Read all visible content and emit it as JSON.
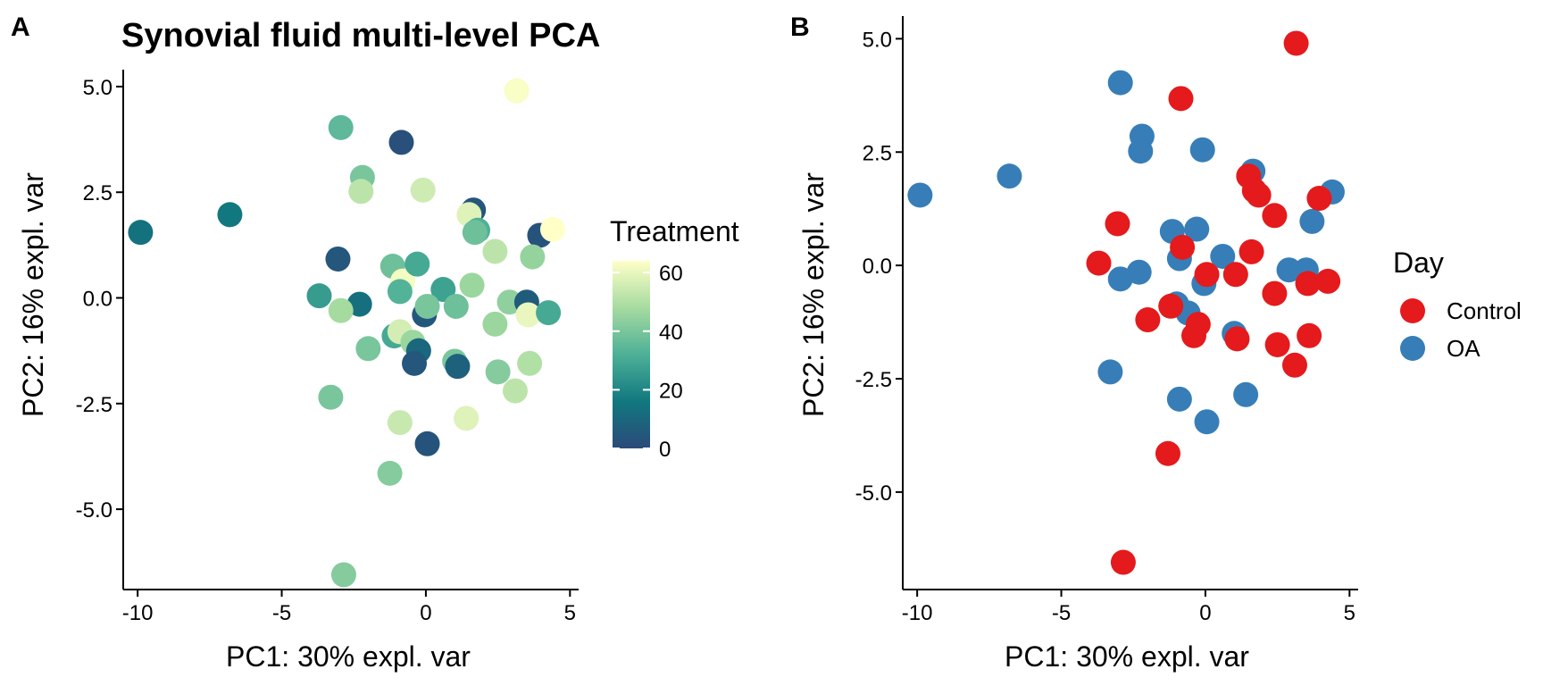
{
  "chart_data": [
    {
      "panel": "A",
      "type": "scatter",
      "title": "Synovial fluid multi-level PCA",
      "xlabel": "PC1: 30% expl. var",
      "ylabel": "PC2: 16% expl. var",
      "xlim": [
        -10.5,
        5.3
      ],
      "ylim": [
        -6.9,
        5.4
      ],
      "xticks": [
        -10,
        -5,
        0,
        5
      ],
      "xtick_labels": [
        "-10",
        "-5",
        "0",
        "5"
      ],
      "yticks": [
        -5,
        -2.5,
        0,
        2.5,
        5
      ],
      "ytick_labels": [
        "-5.0",
        "-2.5",
        "0.0",
        "2.5",
        "5.0"
      ],
      "grid": false,
      "legend": {
        "title": "Treatment",
        "type": "colorbar",
        "placement": "right",
        "min": 0,
        "max": 64,
        "ticks": [
          0,
          20,
          40,
          60
        ],
        "tick_labels": [
          "0",
          "20",
          "40",
          "60"
        ],
        "colors": [
          "#2b4a7a",
          "#11787f",
          "#4db097",
          "#a6dba0",
          "#ffffc8"
        ]
      },
      "color_key": "Treatment",
      "points": [
        {
          "x": -9.9,
          "y": 1.55,
          "Treatment": 14
        },
        {
          "x": -6.8,
          "y": 1.97,
          "Treatment": 16
        },
        {
          "x": -2.95,
          "y": 4.03,
          "Treatment": 35
        },
        {
          "x": -0.85,
          "y": 3.68,
          "Treatment": 2
        },
        {
          "x": 3.15,
          "y": 4.9,
          "Treatment": 63
        },
        {
          "x": -2.2,
          "y": 2.85,
          "Treatment": 40
        },
        {
          "x": -2.25,
          "y": 2.52,
          "Treatment": 52
        },
        {
          "x": -0.1,
          "y": 2.55,
          "Treatment": 55
        },
        {
          "x": 1.65,
          "y": 2.08,
          "Treatment": 4
        },
        {
          "x": 1.5,
          "y": 1.97,
          "Treatment": 58
        },
        {
          "x": 1.8,
          "y": 1.6,
          "Treatment": 32
        },
        {
          "x": 1.7,
          "y": 1.55,
          "Treatment": 38
        },
        {
          "x": 2.4,
          "y": 1.1,
          "Treatment": 52
        },
        {
          "x": 3.95,
          "y": 1.48,
          "Treatment": 3
        },
        {
          "x": 4.4,
          "y": 1.62,
          "Treatment": 64
        },
        {
          "x": -3.05,
          "y": 0.92,
          "Treatment": 4
        },
        {
          "x": -1.15,
          "y": 0.75,
          "Treatment": 38
        },
        {
          "x": -0.8,
          "y": 0.4,
          "Treatment": 62
        },
        {
          "x": -0.3,
          "y": 0.8,
          "Treatment": 30
        },
        {
          "x": -0.9,
          "y": 0.15,
          "Treatment": 33
        },
        {
          "x": 0.6,
          "y": 0.2,
          "Treatment": 28
        },
        {
          "x": 1.6,
          "y": 0.3,
          "Treatment": 46
        },
        {
          "x": 3.7,
          "y": 0.97,
          "Treatment": 45
        },
        {
          "x": -3.7,
          "y": 0.05,
          "Treatment": 26
        },
        {
          "x": -2.3,
          "y": -0.15,
          "Treatment": 13
        },
        {
          "x": -2.95,
          "y": -0.3,
          "Treatment": 48
        },
        {
          "x": -0.05,
          "y": -0.4,
          "Treatment": 5
        },
        {
          "x": 0.05,
          "y": -0.2,
          "Treatment": 40
        },
        {
          "x": 1.05,
          "y": -0.2,
          "Treatment": 38
        },
        {
          "x": 2.9,
          "y": -0.1,
          "Treatment": 44
        },
        {
          "x": 3.5,
          "y": -0.1,
          "Treatment": 6
        },
        {
          "x": 3.55,
          "y": -0.4,
          "Treatment": 60
        },
        {
          "x": 4.25,
          "y": -0.35,
          "Treatment": 30
        },
        {
          "x": 2.4,
          "y": -0.62,
          "Treatment": 46
        },
        {
          "x": -1.1,
          "y": -0.9,
          "Treatment": 30
        },
        {
          "x": -0.9,
          "y": -0.8,
          "Treatment": 56
        },
        {
          "x": -0.45,
          "y": -1.05,
          "Treatment": 46
        },
        {
          "x": -0.25,
          "y": -1.25,
          "Treatment": 10
        },
        {
          "x": -0.4,
          "y": -1.55,
          "Treatment": 4
        },
        {
          "x": -2.0,
          "y": -1.2,
          "Treatment": 40
        },
        {
          "x": 1.0,
          "y": -1.5,
          "Treatment": 40
        },
        {
          "x": 1.1,
          "y": -1.62,
          "Treatment": 8
        },
        {
          "x": 2.5,
          "y": -1.75,
          "Treatment": 42
        },
        {
          "x": 3.6,
          "y": -1.55,
          "Treatment": 50
        },
        {
          "x": 3.1,
          "y": -2.2,
          "Treatment": 52
        },
        {
          "x": -3.3,
          "y": -2.35,
          "Treatment": 40
        },
        {
          "x": -0.9,
          "y": -2.95,
          "Treatment": 54
        },
        {
          "x": 1.4,
          "y": -2.85,
          "Treatment": 58
        },
        {
          "x": 0.05,
          "y": -3.45,
          "Treatment": 3
        },
        {
          "x": -1.25,
          "y": -4.15,
          "Treatment": 42
        },
        {
          "x": -2.85,
          "y": -6.55,
          "Treatment": 42
        }
      ]
    },
    {
      "panel": "B",
      "type": "scatter",
      "title": "",
      "xlabel": "PC1: 30% expl. var",
      "ylabel": "PC2: 16% expl. var",
      "xlim": [
        -10.5,
        5.3
      ],
      "ylim": [
        -7.15,
        5.5
      ],
      "xticks": [
        -10,
        -5,
        0,
        5
      ],
      "xtick_labels": [
        "-10",
        "-5",
        "0",
        "5"
      ],
      "yticks": [
        -5,
        -2.5,
        0,
        2.5,
        5
      ],
      "ytick_labels": [
        "-5.0",
        "-2.5",
        "0.0",
        "2.5",
        "5.0"
      ],
      "grid": false,
      "legend": {
        "title": "Day",
        "placement": "right",
        "entries": [
          {
            "label": "Control",
            "color": "#e41a1c"
          },
          {
            "label": "OA",
            "color": "#377eb8"
          }
        ]
      },
      "color_key": "Day",
      "points": [
        {
          "x": -9.9,
          "y": 1.55,
          "Day": "OA"
        },
        {
          "x": -6.8,
          "y": 1.97,
          "Day": "OA"
        },
        {
          "x": -2.95,
          "y": 4.03,
          "Day": "OA"
        },
        {
          "x": -2.2,
          "y": 2.85,
          "Day": "OA"
        },
        {
          "x": -2.25,
          "y": 2.52,
          "Day": "OA"
        },
        {
          "x": -0.1,
          "y": 2.55,
          "Day": "OA"
        },
        {
          "x": 1.65,
          "y": 2.08,
          "Day": "OA"
        },
        {
          "x": 3.7,
          "y": 0.97,
          "Day": "OA"
        },
        {
          "x": 4.4,
          "y": 1.62,
          "Day": "OA"
        },
        {
          "x": -1.15,
          "y": 0.75,
          "Day": "OA"
        },
        {
          "x": -0.3,
          "y": 0.8,
          "Day": "OA"
        },
        {
          "x": -0.9,
          "y": 0.15,
          "Day": "OA"
        },
        {
          "x": 0.6,
          "y": 0.2,
          "Day": "OA"
        },
        {
          "x": -2.3,
          "y": -0.15,
          "Day": "OA"
        },
        {
          "x": -2.95,
          "y": -0.3,
          "Day": "OA"
        },
        {
          "x": -0.05,
          "y": -0.4,
          "Day": "OA"
        },
        {
          "x": 2.9,
          "y": -0.1,
          "Day": "OA"
        },
        {
          "x": 3.5,
          "y": -0.1,
          "Day": "OA"
        },
        {
          "x": -1.0,
          "y": -0.85,
          "Day": "OA"
        },
        {
          "x": -0.6,
          "y": -1.05,
          "Day": "OA"
        },
        {
          "x": 1.0,
          "y": -1.5,
          "Day": "OA"
        },
        {
          "x": -3.3,
          "y": -2.35,
          "Day": "OA"
        },
        {
          "x": -0.9,
          "y": -2.95,
          "Day": "OA"
        },
        {
          "x": 1.4,
          "y": -2.85,
          "Day": "OA"
        },
        {
          "x": 0.05,
          "y": -3.45,
          "Day": "OA"
        },
        {
          "x": 3.15,
          "y": 4.9,
          "Day": "Control"
        },
        {
          "x": -0.85,
          "y": 3.68,
          "Day": "Control"
        },
        {
          "x": 1.5,
          "y": 1.97,
          "Day": "Control"
        },
        {
          "x": 1.7,
          "y": 1.65,
          "Day": "Control"
        },
        {
          "x": 1.85,
          "y": 1.55,
          "Day": "Control"
        },
        {
          "x": 2.4,
          "y": 1.1,
          "Day": "Control"
        },
        {
          "x": 3.95,
          "y": 1.48,
          "Day": "Control"
        },
        {
          "x": -3.05,
          "y": 0.92,
          "Day": "Control"
        },
        {
          "x": -0.8,
          "y": 0.4,
          "Day": "Control"
        },
        {
          "x": 1.6,
          "y": 0.3,
          "Day": "Control"
        },
        {
          "x": -3.7,
          "y": 0.05,
          "Day": "Control"
        },
        {
          "x": 0.05,
          "y": -0.2,
          "Day": "Control"
        },
        {
          "x": 1.05,
          "y": -0.2,
          "Day": "Control"
        },
        {
          "x": 3.55,
          "y": -0.4,
          "Day": "Control"
        },
        {
          "x": 4.25,
          "y": -0.35,
          "Day": "Control"
        },
        {
          "x": 2.4,
          "y": -0.62,
          "Day": "Control"
        },
        {
          "x": -1.2,
          "y": -0.9,
          "Day": "Control"
        },
        {
          "x": -0.25,
          "y": -1.3,
          "Day": "Control"
        },
        {
          "x": -0.4,
          "y": -1.55,
          "Day": "Control"
        },
        {
          "x": -2.0,
          "y": -1.2,
          "Day": "Control"
        },
        {
          "x": 1.1,
          "y": -1.62,
          "Day": "Control"
        },
        {
          "x": 2.5,
          "y": -1.75,
          "Day": "Control"
        },
        {
          "x": 3.6,
          "y": -1.55,
          "Day": "Control"
        },
        {
          "x": 3.1,
          "y": -2.2,
          "Day": "Control"
        },
        {
          "x": -1.3,
          "y": -4.15,
          "Day": "Control"
        },
        {
          "x": -2.85,
          "y": -6.55,
          "Day": "Control"
        }
      ]
    }
  ]
}
